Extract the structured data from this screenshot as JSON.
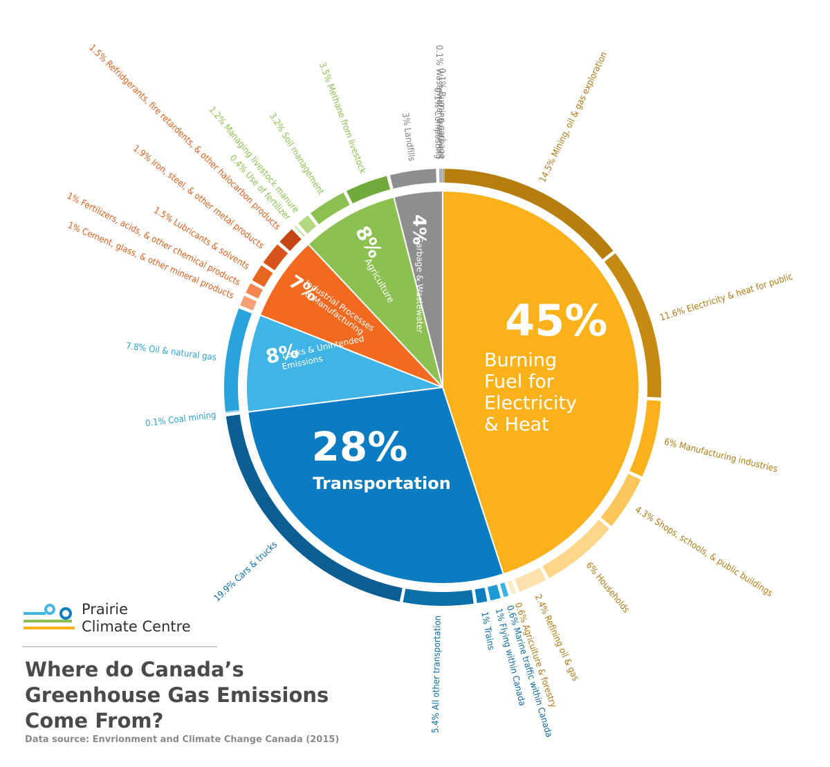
{
  "title": "Where do Canada’s Greenhouse Gas Emissions Come From?",
  "source": "Data source: Envrionment and Climate Change Canada (2015)",
  "logo": {
    "text_line1": "Prairie",
    "text_line2": "Climate Centre"
  },
  "chart_data": {
    "type": "pie",
    "categories": [
      {
        "pct": "45",
        "labels": [
          "Burning",
          "Fuel for",
          "Electricity",
          "& Heat"
        ],
        "value": 45,
        "color": "#FBB21A",
        "ring_color": "#C48A12",
        "subcategories": [
          {
            "label": "14.5% Mining, oil & gas exploration",
            "value": 14.5,
            "color": "#B57E0F"
          },
          {
            "label": "11.6% Electricity & heat for public",
            "value": 11.6,
            "color": "#C48A12"
          },
          {
            "label": "6% Manufacturing industries",
            "value": 6,
            "color": "#FBB21A"
          },
          {
            "label": "4.3% Shops, schools, & public buildings",
            "value": 4.3,
            "color": "#FCC75A"
          },
          {
            "label": "6% Households",
            "value": 6,
            "color": "#FDD68A"
          },
          {
            "label": "2.4% Refining oil & gas",
            "value": 2.4,
            "color": "#FDE2AD"
          },
          {
            "label": "0.6% Agriculture & forestry",
            "value": 0.6,
            "color": "#FEEBC7"
          }
        ]
      },
      {
        "pct": "28",
        "labels": [
          "Transportation"
        ],
        "value": 28,
        "color": "#0B7CC1",
        "ring_color": "#0B5E93",
        "subcategories": [
          {
            "label": "0.6% Marine traffic within Canada",
            "value": 0.6,
            "color": "#3DB2E6"
          },
          {
            "label": "1% Flying within Canada",
            "value": 1,
            "color": "#1C9BD8"
          },
          {
            "label": "1% Trains",
            "value": 1,
            "color": "#0E7FBE"
          },
          {
            "label": "5.4% All other transportation",
            "value": 5.4,
            "color": "#0C6EA8"
          },
          {
            "label": "19.9% Cars & trucks",
            "value": 19.9,
            "color": "#0B5E93"
          }
        ]
      },
      {
        "pct": "8",
        "labels": [
          "Leaks & Unintended",
          "Emissions"
        ],
        "value": 8,
        "color": "#41B4E6",
        "ring_color": "#2AA3DC",
        "subcategories": [
          {
            "label": "0.1% Coal mining",
            "value": 0.1,
            "color": "#7DCBEE"
          },
          {
            "label": "7.8% Oil & natural gas",
            "value": 7.8,
            "color": "#2AA3DC"
          }
        ]
      },
      {
        "pct": "7",
        "labels": [
          "Industrial Processes",
          "& Manufacturing"
        ],
        "value": 7,
        "color": "#F26A1F",
        "ring_color": "#D9541A",
        "subcategories": [
          {
            "label": "1% Cement, glass, & other mineral products",
            "value": 1,
            "color": "#F6A07A"
          },
          {
            "label": "1% Fertilizers, acids, & other chemical products",
            "value": 1,
            "color": "#F5864F"
          },
          {
            "label": "1.5% Lubricants & solvents",
            "value": 1.5,
            "color": "#E8651F"
          },
          {
            "label": "1.9% Iron, steel, & other metal products",
            "value": 1.9,
            "color": "#D9541A"
          },
          {
            "label": "1.5% Refridgerants, fire retardents, & other halocarbon products",
            "value": 1.5,
            "color": "#C44612"
          }
        ]
      },
      {
        "pct": "8",
        "labels": [
          "Agriculture"
        ],
        "value": 8,
        "color": "#8CC152",
        "ring_color": "#72AA3C",
        "subcategories": [
          {
            "label": "0.4% Use of fertilizer",
            "value": 0.4,
            "color": "#CFE6A8"
          },
          {
            "label": "1.2% Managing livestock manure",
            "value": 1.2,
            "color": "#B3D87F"
          },
          {
            "label": "3.2% Soil management",
            "value": 3.2,
            "color": "#8CC152"
          },
          {
            "label": "3.5% Methane from livestock",
            "value": 3.5,
            "color": "#72AA3C"
          }
        ]
      },
      {
        "pct": "4",
        "labels": [
          "Garbage & Wastewater"
        ],
        "value": 4,
        "color": "#8E8E8E",
        "ring_color": "#7A7A7A",
        "subcategories": [
          {
            "label": "3% Landfills",
            "value": 3,
            "color": "#8E8E8E"
          },
          {
            "label": "0.1% Composting",
            "value": 0.1,
            "color": "#8E8E8E"
          },
          {
            "label": "0.1% Wastewater treatment",
            "value": 0.1,
            "color": "#8E8E8E"
          },
          {
            "label": "0.1% Burning garbage",
            "value": 0.1,
            "color": "#8E8E8E"
          }
        ]
      }
    ],
    "label_colors": {
      "energy": "#B07A12",
      "transport": "#0B6CA8",
      "leaks": "#2AA3DC",
      "industrial": "#E0601C",
      "agriculture": "#8CC152",
      "garbage": "#7F7F7F"
    }
  }
}
